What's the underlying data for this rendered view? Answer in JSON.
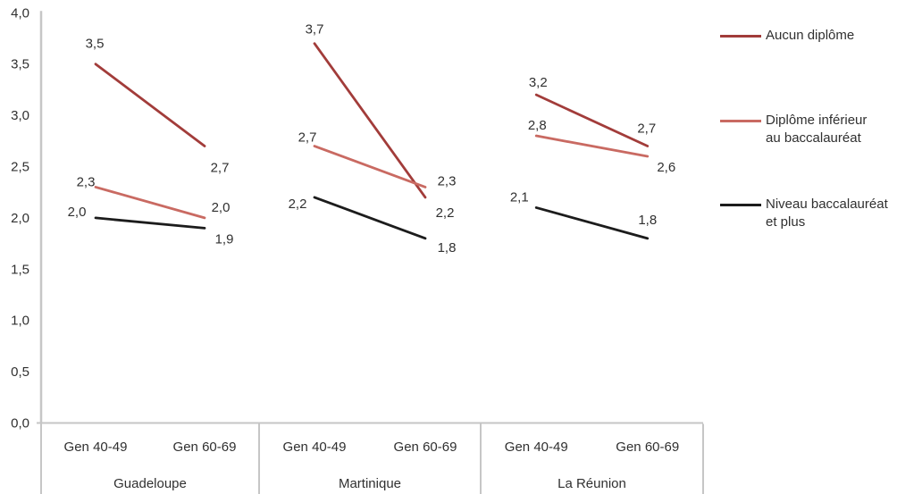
{
  "chart_data": {
    "type": "line",
    "title": "",
    "xlabel": "",
    "ylabel": "",
    "ylim": [
      0.0,
      4.0
    ],
    "ytick_step": 0.5,
    "ytick_labels": [
      "0,0",
      "0,5",
      "1,0",
      "1,5",
      "2,0",
      "2,5",
      "3,0",
      "3,5",
      "4,0"
    ],
    "grid": false,
    "legend_position": "right",
    "groups": [
      {
        "label": "Guadeloupe",
        "categories": [
          "Gen 40-49",
          "Gen 60-69"
        ]
      },
      {
        "label": "Martinique",
        "categories": [
          "Gen 40-49",
          "Gen 60-69"
        ]
      },
      {
        "label": "La Réunion",
        "categories": [
          "Gen 40-49",
          "Gen 60-69"
        ]
      }
    ],
    "series": [
      {
        "name": "Aucun diplôme",
        "legend_lines": [
          "Aucun diplôme"
        ],
        "color": "#A23C3A",
        "values": [
          3.5,
          2.7,
          3.7,
          2.2,
          3.2,
          2.7
        ],
        "labels": [
          "3,5",
          "2,7",
          "3,7",
          "2,2",
          "3,2",
          "2,7"
        ],
        "label_offsets": [
          [
            -1,
            -23
          ],
          [
            17,
            24
          ],
          [
            0,
            -16
          ],
          [
            22,
            17
          ],
          [
            2,
            -14
          ],
          [
            -1,
            -20
          ]
        ]
      },
      {
        "name": "Diplôme inférieur au baccalauréat",
        "legend_lines": [
          "Diplôme inférieur",
          "au baccalauréat"
        ],
        "color": "#C96A62",
        "values": [
          2.3,
          2.0,
          2.7,
          2.3,
          2.8,
          2.6
        ],
        "labels": [
          "2,3",
          "2,0",
          "2,7",
          "2,3",
          "2,8",
          "2,6"
        ],
        "label_offsets": [
          [
            -11,
            -6
          ],
          [
            18,
            -12
          ],
          [
            -8,
            -10
          ],
          [
            24,
            -7
          ],
          [
            1,
            -12
          ],
          [
            21,
            12
          ]
        ]
      },
      {
        "name": "Niveau baccalauréat et plus",
        "legend_lines": [
          "Niveau baccalauréat",
          "et plus"
        ],
        "color": "#1C1C1C",
        "values": [
          2.0,
          1.9,
          2.2,
          1.8,
          2.1,
          1.8
        ],
        "labels": [
          "2,0",
          "1,9",
          "2,2",
          "1,8",
          "2,1",
          "1,8"
        ],
        "label_offsets": [
          [
            -21,
            -7
          ],
          [
            22,
            12
          ],
          [
            -19,
            7
          ],
          [
            24,
            10
          ],
          [
            -19,
            -12
          ],
          [
            0,
            -21
          ]
        ]
      }
    ],
    "axis_color": "#C6C6C6",
    "text_color": "#303030"
  }
}
